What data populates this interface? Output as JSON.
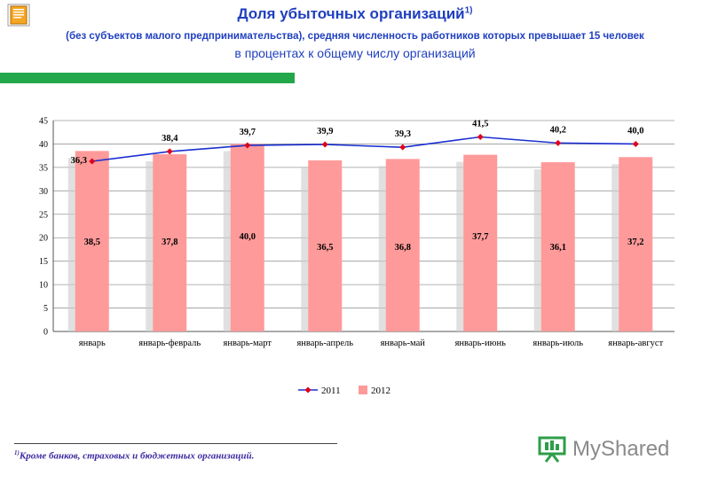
{
  "header": {
    "title": "Доля убыточных организаций",
    "title_sup": "1)",
    "subtitle": "(без субъектов малого предпринимательства), средняя численность работников которых превышает 15 человек",
    "subtitle2": "в процентах к общему числу организаций"
  },
  "footnote": {
    "sup": "1)",
    "text": "Кроме банков, страховых и бюджетных организаций."
  },
  "logo": {
    "text": "MyShared"
  },
  "colors": {
    "accent": "#1f3fbf",
    "green": "#22a84a",
    "bar": "#ff9a9a",
    "line": "#1a2fd0",
    "marker": "#e0001b"
  },
  "chart_data": {
    "type": "bar+line",
    "categories": [
      "январь",
      "январь-февраль",
      "январь-март",
      "январь-апрель",
      "январь-май",
      "январь-июнь",
      "январь-июль",
      "январь-август"
    ],
    "series": [
      {
        "name": "2011",
        "type": "line",
        "values": [
          36.3,
          38.4,
          39.7,
          39.9,
          39.3,
          41.5,
          40.2,
          40.0
        ],
        "labels": [
          "36,3",
          "38,4",
          "39,7",
          "39,9",
          "39,3",
          "41,5",
          "40,2",
          "40,0"
        ]
      },
      {
        "name": "2012",
        "type": "bar",
        "values": [
          38.5,
          37.8,
          40.0,
          36.5,
          36.8,
          37.7,
          36.1,
          37.2
        ],
        "labels": [
          "38,5",
          "37,8",
          "40,0",
          "36,5",
          "36,8",
          "37,7",
          "36,1",
          "37,2"
        ]
      }
    ],
    "ylim": [
      0,
      45
    ],
    "yticks": [
      "0",
      "5",
      "10",
      "15",
      "20",
      "25",
      "30",
      "35",
      "40",
      "45"
    ],
    "grid": true,
    "legend": "bottom-center"
  }
}
